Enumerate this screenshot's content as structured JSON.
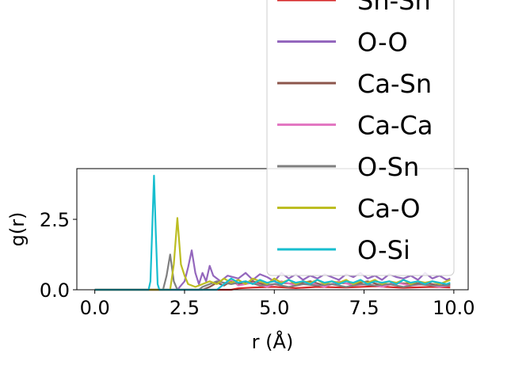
{
  "chart_data": {
    "type": "line",
    "xlabel": "r (Å)",
    "ylabel": "g(r)",
    "xlim": [
      -0.5,
      10.4
    ],
    "ylim": [
      0,
      4.3
    ],
    "xticks": [
      0.0,
      2.5,
      5.0,
      7.5,
      10.0
    ],
    "xtick_labels": [
      "0.0",
      "2.5",
      "5.0",
      "7.5",
      "10.0"
    ],
    "yticks": [
      0.0,
      2.5
    ],
    "ytick_labels": [
      "0.0",
      "2.5"
    ],
    "grid": false,
    "legend_position": "upper-right",
    "series": [
      {
        "name": "Sn-Sn",
        "color": "#d62728",
        "points": [
          [
            0,
            0
          ],
          [
            3.8,
            0
          ],
          [
            4.0,
            0.05
          ],
          [
            4.4,
            0.08
          ],
          [
            5.0,
            0.1
          ],
          [
            5.6,
            0.06
          ],
          [
            6.2,
            0.1
          ],
          [
            7.0,
            0.08
          ],
          [
            7.8,
            0.12
          ],
          [
            8.6,
            0.07
          ],
          [
            9.4,
            0.1
          ],
          [
            9.9,
            0.08
          ]
        ]
      },
      {
        "name": "O-O",
        "color": "#9467bd",
        "points": [
          [
            0,
            0
          ],
          [
            2.3,
            0
          ],
          [
            2.5,
            0.3
          ],
          [
            2.6,
            0.8
          ],
          [
            2.7,
            1.4
          ],
          [
            2.8,
            0.6
          ],
          [
            2.9,
            0.2
          ],
          [
            3.0,
            0.6
          ],
          [
            3.1,
            0.3
          ],
          [
            3.2,
            0.85
          ],
          [
            3.3,
            0.5
          ],
          [
            3.5,
            0.3
          ],
          [
            3.7,
            0.5
          ],
          [
            4.0,
            0.4
          ],
          [
            4.2,
            0.6
          ],
          [
            4.4,
            0.35
          ],
          [
            4.6,
            0.55
          ],
          [
            4.8,
            0.45
          ],
          [
            5.0,
            0.3
          ],
          [
            5.2,
            0.6
          ],
          [
            5.4,
            0.4
          ],
          [
            5.6,
            0.55
          ],
          [
            5.8,
            0.35
          ],
          [
            6.0,
            0.5
          ],
          [
            6.2,
            0.4
          ],
          [
            6.4,
            0.55
          ],
          [
            6.6,
            0.45
          ],
          [
            6.8,
            0.35
          ],
          [
            7.0,
            0.55
          ],
          [
            7.2,
            0.45
          ],
          [
            7.4,
            0.6
          ],
          [
            7.6,
            0.4
          ],
          [
            7.8,
            0.5
          ],
          [
            8.0,
            0.35
          ],
          [
            8.2,
            0.55
          ],
          [
            8.4,
            0.45
          ],
          [
            8.6,
            0.4
          ],
          [
            8.8,
            0.5
          ],
          [
            9.0,
            0.35
          ],
          [
            9.2,
            0.6
          ],
          [
            9.4,
            0.4
          ],
          [
            9.6,
            0.5
          ],
          [
            9.8,
            0.35
          ],
          [
            9.9,
            0.4
          ]
        ]
      },
      {
        "name": "Ca-Sn",
        "color": "#8c564b",
        "points": [
          [
            0,
            0
          ],
          [
            3.0,
            0
          ],
          [
            3.2,
            0.1
          ],
          [
            3.4,
            0.25
          ],
          [
            3.6,
            0.15
          ],
          [
            3.8,
            0.3
          ],
          [
            4.0,
            0.2
          ],
          [
            4.4,
            0.3
          ],
          [
            4.8,
            0.15
          ],
          [
            5.2,
            0.25
          ],
          [
            5.6,
            0.2
          ],
          [
            6.0,
            0.3
          ],
          [
            6.4,
            0.15
          ],
          [
            6.8,
            0.25
          ],
          [
            7.2,
            0.2
          ],
          [
            7.6,
            0.3
          ],
          [
            8.0,
            0.15
          ],
          [
            8.4,
            0.25
          ],
          [
            8.8,
            0.2
          ],
          [
            9.2,
            0.25
          ],
          [
            9.6,
            0.15
          ],
          [
            9.9,
            0.2
          ]
        ]
      },
      {
        "name": "Ca-Ca",
        "color": "#e377c2",
        "points": [
          [
            0,
            0
          ],
          [
            3.4,
            0
          ],
          [
            3.6,
            0.2
          ],
          [
            3.8,
            0.35
          ],
          [
            4.0,
            0.15
          ],
          [
            4.4,
            0.25
          ],
          [
            4.8,
            0.1
          ],
          [
            5.2,
            0.3
          ],
          [
            5.6,
            0.15
          ],
          [
            6.0,
            0.25
          ],
          [
            6.4,
            0.1
          ],
          [
            6.8,
            0.3
          ],
          [
            7.2,
            0.15
          ],
          [
            7.6,
            0.2
          ],
          [
            8.0,
            0.1
          ],
          [
            8.4,
            0.25
          ],
          [
            8.8,
            0.15
          ],
          [
            9.2,
            0.2
          ],
          [
            9.6,
            0.1
          ],
          [
            9.9,
            0.15
          ]
        ]
      },
      {
        "name": "O-Sn",
        "color": "#7f7f7f",
        "points": [
          [
            0,
            0
          ],
          [
            1.9,
            0
          ],
          [
            2.0,
            0.5
          ],
          [
            2.1,
            1.25
          ],
          [
            2.2,
            0.3
          ],
          [
            2.3,
            0
          ],
          [
            2.9,
            0
          ],
          [
            3.0,
            0.1
          ],
          [
            3.4,
            0.3
          ],
          [
            3.8,
            0.2
          ],
          [
            4.2,
            0.3
          ],
          [
            4.6,
            0.15
          ],
          [
            5.0,
            0.2
          ],
          [
            5.4,
            0.1
          ],
          [
            5.8,
            0.2
          ],
          [
            6.2,
            0.15
          ],
          [
            6.6,
            0.2
          ],
          [
            7.0,
            0.1
          ],
          [
            7.4,
            0.2
          ],
          [
            7.8,
            0.15
          ],
          [
            8.2,
            0.2
          ],
          [
            8.6,
            0.1
          ],
          [
            9.0,
            0.2
          ],
          [
            9.4,
            0.15
          ],
          [
            9.9,
            0.15
          ]
        ]
      },
      {
        "name": "Ca-O",
        "color": "#bcbd22",
        "points": [
          [
            0,
            0
          ],
          [
            2.1,
            0
          ],
          [
            2.2,
            0.9
          ],
          [
            2.3,
            2.55
          ],
          [
            2.4,
            0.9
          ],
          [
            2.5,
            0.5
          ],
          [
            2.6,
            0.2
          ],
          [
            2.8,
            0.1
          ],
          [
            3.0,
            0.2
          ],
          [
            3.2,
            0.3
          ],
          [
            3.4,
            0.2
          ],
          [
            3.6,
            0.4
          ],
          [
            3.8,
            0.25
          ],
          [
            4.0,
            0.35
          ],
          [
            4.2,
            0.2
          ],
          [
            4.4,
            0.4
          ],
          [
            4.6,
            0.3
          ],
          [
            4.8,
            0.2
          ],
          [
            5.0,
            0.4
          ],
          [
            5.2,
            0.25
          ],
          [
            5.4,
            0.35
          ],
          [
            5.6,
            0.2
          ],
          [
            5.8,
            0.3
          ],
          [
            6.0,
            0.25
          ],
          [
            6.2,
            0.35
          ],
          [
            6.4,
            0.2
          ],
          [
            6.6,
            0.3
          ],
          [
            6.8,
            0.25
          ],
          [
            7.0,
            0.35
          ],
          [
            7.2,
            0.2
          ],
          [
            7.4,
            0.3
          ],
          [
            7.6,
            0.25
          ],
          [
            7.8,
            0.35
          ],
          [
            8.0,
            0.2
          ],
          [
            8.2,
            0.3
          ],
          [
            8.4,
            0.25
          ],
          [
            8.6,
            0.35
          ],
          [
            8.8,
            0.2
          ],
          [
            9.0,
            0.3
          ],
          [
            9.2,
            0.25
          ],
          [
            9.4,
            0.3
          ],
          [
            9.6,
            0.2
          ],
          [
            9.8,
            0.3
          ],
          [
            9.9,
            0.35
          ]
        ]
      },
      {
        "name": "O-Si",
        "color": "#17becf",
        "points": [
          [
            0,
            0
          ],
          [
            1.5,
            0
          ],
          [
            1.55,
            0.3
          ],
          [
            1.6,
            2.2
          ],
          [
            1.65,
            4.05
          ],
          [
            1.7,
            2.0
          ],
          [
            1.75,
            0.2
          ],
          [
            1.8,
            0
          ],
          [
            3.4,
            0
          ],
          [
            3.6,
            0.2
          ],
          [
            3.8,
            0.4
          ],
          [
            4.0,
            0.25
          ],
          [
            4.2,
            0.3
          ],
          [
            4.4,
            0.2
          ],
          [
            4.6,
            0.35
          ],
          [
            4.8,
            0.25
          ],
          [
            5.0,
            0.3
          ],
          [
            5.2,
            0.2
          ],
          [
            5.4,
            0.35
          ],
          [
            5.6,
            0.25
          ],
          [
            5.8,
            0.3
          ],
          [
            6.0,
            0.2
          ],
          [
            6.2,
            0.35
          ],
          [
            6.4,
            0.25
          ],
          [
            6.6,
            0.3
          ],
          [
            6.8,
            0.2
          ],
          [
            7.0,
            0.3
          ],
          [
            7.2,
            0.25
          ],
          [
            7.4,
            0.35
          ],
          [
            7.6,
            0.2
          ],
          [
            7.8,
            0.3
          ],
          [
            8.0,
            0.25
          ],
          [
            8.2,
            0.3
          ],
          [
            8.4,
            0.2
          ],
          [
            8.6,
            0.35
          ],
          [
            8.8,
            0.25
          ],
          [
            9.0,
            0.3
          ],
          [
            9.2,
            0.2
          ],
          [
            9.4,
            0.3
          ],
          [
            9.6,
            0.25
          ],
          [
            9.8,
            0.2
          ],
          [
            9.9,
            0.25
          ]
        ]
      }
    ]
  }
}
